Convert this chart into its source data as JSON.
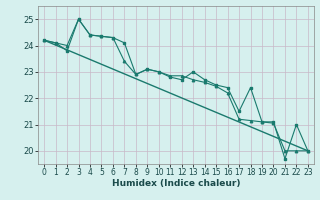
{
  "xlabel": "Humidex (Indice chaleur)",
  "ylabel": "",
  "background_color": "#d6f0ee",
  "grid_color_h": "#c8b8c8",
  "grid_color_v": "#c8b8c8",
  "line_color": "#1a7a6e",
  "xlim": [
    -0.5,
    23.5
  ],
  "ylim": [
    19.5,
    25.5
  ],
  "xticks": [
    0,
    1,
    2,
    3,
    4,
    5,
    6,
    7,
    8,
    9,
    10,
    11,
    12,
    13,
    14,
    15,
    16,
    17,
    18,
    19,
    20,
    21,
    22,
    23
  ],
  "yticks": [
    20,
    21,
    22,
    23,
    24,
    25
  ],
  "series1_x": [
    0,
    1,
    2,
    3,
    4,
    5,
    6,
    7,
    8,
    9,
    10,
    11,
    12,
    13,
    14,
    15,
    16,
    17,
    18,
    19,
    20,
    21,
    22,
    23
  ],
  "series1_y": [
    24.2,
    24.1,
    23.8,
    25.0,
    24.4,
    24.35,
    24.3,
    24.1,
    22.9,
    23.1,
    23.0,
    22.8,
    22.7,
    23.0,
    22.7,
    22.5,
    22.4,
    21.5,
    22.4,
    21.1,
    21.1,
    19.7,
    21.0,
    20.0
  ],
  "series2_x": [
    0,
    1,
    2,
    3,
    4,
    5,
    6,
    7,
    8,
    9,
    10,
    11,
    12,
    13,
    14,
    15,
    16,
    17,
    18,
    19,
    20,
    21,
    22,
    23
  ],
  "series2_y": [
    24.2,
    24.1,
    24.0,
    25.0,
    24.4,
    24.35,
    24.3,
    23.4,
    22.9,
    23.1,
    23.0,
    22.85,
    22.85,
    22.7,
    22.6,
    22.45,
    22.2,
    21.2,
    21.15,
    21.1,
    21.05,
    20.0,
    20.0,
    20.0
  ],
  "trend_x": [
    0,
    23
  ],
  "trend_y": [
    24.2,
    20.0
  ]
}
